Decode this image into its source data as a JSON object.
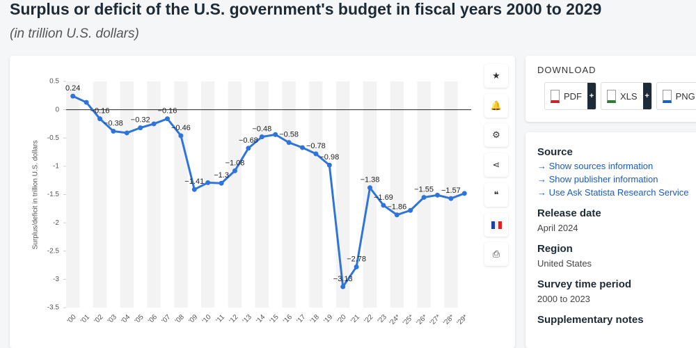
{
  "chart_data": {
    "type": "line",
    "title": "Surplus or deficit of the U.S. government's budget in fiscal years 2000 to 2029",
    "subtitle": "(in trillion U.S. dollars)",
    "y_label": "Surplus/deficit in trillion U.S. dollars",
    "categories": [
      "'00",
      "'01",
      "'02",
      "'03",
      "'04",
      "'05",
      "'06",
      "'07",
      "'08",
      "'09",
      "'10",
      "'11",
      "'12",
      "'13",
      "'14",
      "'15",
      "'16",
      "'17",
      "'18",
      "'19",
      "'20",
      "'21",
      "'22",
      "'23",
      "'24*",
      "'25*",
      "'26*",
      "'27*",
      "'28*",
      "'29*"
    ],
    "series": [
      {
        "name": "Surplus/deficit",
        "color": "#2f74d9",
        "values": [
          0.24,
          0.13,
          -0.16,
          -0.38,
          -0.41,
          -0.32,
          -0.25,
          -0.16,
          -0.46,
          -1.41,
          -1.29,
          -1.3,
          -1.08,
          -0.68,
          -0.48,
          -0.44,
          -0.58,
          -0.67,
          -0.78,
          -0.98,
          -3.13,
          -2.78,
          -1.38,
          -1.69,
          -1.86,
          -1.78,
          -1.55,
          -1.51,
          -1.57,
          -1.48
        ],
        "value_labels": [
          "0.24",
          null,
          "−0.16",
          "−0.38",
          null,
          "−0.32",
          null,
          "−0.16",
          "−0.46",
          "−1.41",
          null,
          "−1.3",
          "−1.08",
          "−0.68",
          "−0.48",
          null,
          "−0.58",
          null,
          "−0.78",
          "−0.98",
          "−3.13",
          "−2.78",
          "−1.38",
          "−1.69",
          "−1.86",
          null,
          "−1.55",
          null,
          "−1.57",
          null
        ]
      }
    ],
    "ylim": [
      -3.5,
      0.5
    ],
    "yticks": [
      0.5,
      0,
      -0.5,
      -1,
      -1.5,
      -2,
      -2.5,
      -3,
      -3.5
    ],
    "grid": false
  },
  "download": {
    "title": "DOWNLOAD",
    "buttons": [
      "PDF",
      "XLS",
      "PNG"
    ]
  },
  "info": {
    "source": {
      "heading": "Source",
      "links": [
        "Show sources information",
        "Show publisher information",
        "Use Ask Statista Research Service"
      ]
    },
    "sections": [
      {
        "heading": "Release date",
        "text": "April 2024"
      },
      {
        "heading": "Region",
        "text": "United States"
      },
      {
        "heading": "Survey time period",
        "text": "2000 to 2023"
      },
      {
        "heading": "Supplementary notes"
      }
    ]
  }
}
